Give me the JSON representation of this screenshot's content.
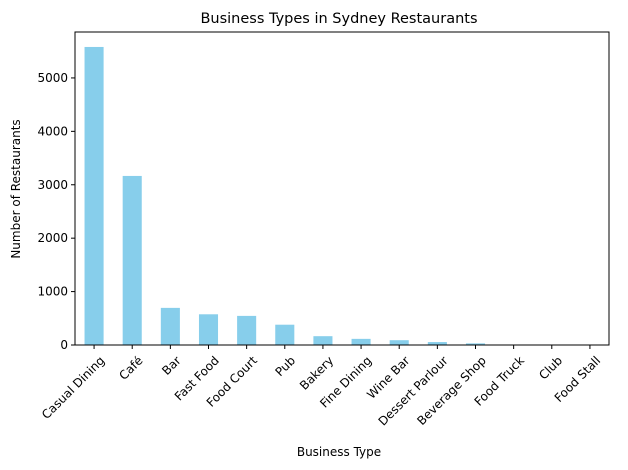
{
  "chart_data": {
    "type": "bar",
    "title": "Business Types in Sydney Restaurants",
    "xlabel": "Business Type",
    "ylabel": "Number of Restaurants",
    "categories": [
      "Casual Dining",
      "Café",
      "Bar",
      "Fast Food",
      "Food Court",
      "Pub",
      "Bakery",
      "Fine Dining",
      "Wine Bar",
      "Dessert Parlour",
      "Beverage Shop",
      "Food Truck",
      "Club",
      "Food Stall"
    ],
    "values": [
      5580,
      3165,
      695,
      575,
      545,
      380,
      165,
      115,
      90,
      55,
      30,
      5,
      3,
      2
    ],
    "ylim": [
      0,
      5860
    ],
    "yticks": [
      0,
      1000,
      2000,
      3000,
      4000,
      5000
    ],
    "bar_color": "#87ceeb",
    "grid": false,
    "legend": "none"
  }
}
